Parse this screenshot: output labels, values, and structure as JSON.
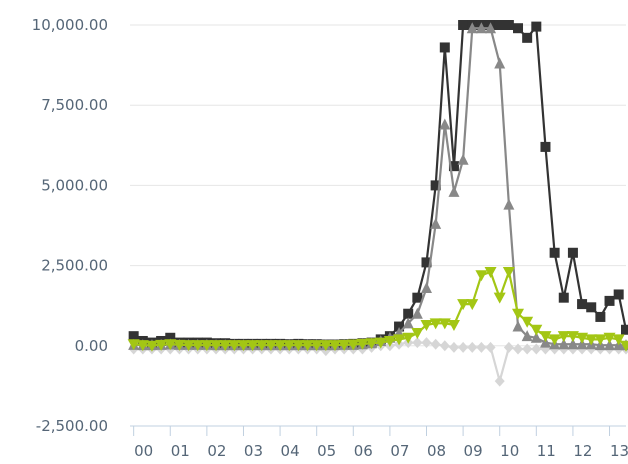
{
  "chart_data": {
    "type": "line",
    "title": "",
    "xlabel": "",
    "ylabel": "",
    "ylim": [
      -2500,
      10000
    ],
    "y_ticks": [
      -2500,
      0,
      2500,
      5000,
      7500,
      10000
    ],
    "y_tick_labels": [
      "-2,500.00",
      "0.00",
      "2,500.00",
      "5,000.00",
      "7,500.00",
      "10,000.00"
    ],
    "x_ticks": [
      0,
      1,
      2,
      3,
      4,
      5,
      6,
      7,
      8,
      9,
      10,
      11,
      12,
      13
    ],
    "x_tick_labels": [
      "00",
      "01",
      "02",
      "03",
      "04",
      "05",
      "06",
      "07",
      "08",
      "09",
      "10",
      "11",
      "12",
      "13"
    ],
    "xlim": [
      -0.1,
      13.45
    ],
    "grid": true,
    "legend": "none",
    "series": [
      {
        "marker": "square",
        "color": "#333333",
        "x": [
          0,
          0.25,
          0.5,
          0.75,
          1,
          1.25,
          1.5,
          1.75,
          2,
          2.25,
          2.5,
          2.75,
          3,
          3.25,
          3.5,
          3.75,
          4,
          4.25,
          4.5,
          4.75,
          5,
          5.25,
          5.5,
          5.75,
          6,
          6.25,
          6.5,
          6.75,
          7,
          7.25,
          7.5,
          7.75,
          8,
          8.25,
          8.5,
          8.75,
          9,
          9.25,
          9.5,
          9.75,
          10,
          10.25,
          10.5,
          10.75,
          11,
          11.25,
          11.5,
          11.75,
          12,
          12.25,
          12.5,
          12.75,
          13,
          13.25,
          13.45
        ],
        "y": [
          300,
          150,
          100,
          150,
          250,
          100,
          100,
          100,
          100,
          80,
          80,
          60,
          60,
          60,
          60,
          60,
          60,
          50,
          60,
          50,
          50,
          40,
          40,
          50,
          60,
          80,
          100,
          200,
          300,
          600,
          1000,
          1500,
          2600,
          5000,
          9300,
          5600,
          10000,
          10000,
          10000,
          10000,
          10000,
          10000,
          9900,
          9600,
          9950,
          6200,
          2900,
          1500,
          2900,
          1300,
          1200,
          900,
          1400,
          1600,
          500
        ]
      },
      {
        "marker": "triangle-up",
        "color": "#888888",
        "x": [
          0,
          0.25,
          0.5,
          0.75,
          1,
          1.25,
          1.5,
          1.75,
          2,
          2.25,
          2.5,
          2.75,
          3,
          3.25,
          3.5,
          3.75,
          4,
          4.25,
          4.5,
          4.75,
          5,
          5.25,
          5.5,
          5.75,
          6,
          6.25,
          6.5,
          6.75,
          7,
          7.25,
          7.5,
          7.75,
          8,
          8.25,
          8.5,
          8.75,
          9,
          9.25,
          9.5,
          9.75,
          10,
          10.25,
          10.5,
          10.75,
          11,
          11.25,
          11.5,
          11.75,
          12,
          12.25,
          12.5,
          12.75,
          13,
          13.25,
          13.45
        ],
        "y": [
          30,
          20,
          20,
          30,
          40,
          30,
          30,
          30,
          30,
          20,
          20,
          20,
          20,
          20,
          20,
          20,
          20,
          20,
          20,
          20,
          20,
          20,
          20,
          30,
          30,
          50,
          80,
          150,
          250,
          400,
          700,
          1000,
          1800,
          3800,
          6900,
          4800,
          5800,
          9900,
          9900,
          9900,
          8800,
          4400,
          600,
          300,
          250,
          100,
          50,
          50,
          50,
          50,
          50,
          20,
          20,
          20,
          20
        ]
      },
      {
        "marker": "triangle-down",
        "color": "#a3c614",
        "x": [
          0,
          0.25,
          0.5,
          0.75,
          1,
          1.25,
          1.5,
          1.75,
          2,
          2.25,
          2.5,
          2.75,
          3,
          3.25,
          3.5,
          3.75,
          4,
          4.25,
          4.5,
          4.75,
          5,
          5.25,
          5.5,
          5.75,
          6,
          6.25,
          6.5,
          6.75,
          7,
          7.25,
          7.5,
          7.75,
          8,
          8.25,
          8.5,
          8.75,
          9,
          9.25,
          9.5,
          9.75,
          10,
          10.25,
          10.5,
          10.75,
          11,
          11.25,
          11.5,
          11.75,
          12,
          12.25,
          12.5,
          12.75,
          13,
          13.25,
          13.45
        ],
        "y": [
          50,
          20,
          0,
          30,
          50,
          30,
          20,
          20,
          20,
          20,
          20,
          20,
          20,
          20,
          20,
          20,
          20,
          20,
          20,
          20,
          20,
          20,
          20,
          30,
          40,
          60,
          80,
          100,
          150,
          200,
          250,
          400,
          650,
          700,
          700,
          650,
          1300,
          1300,
          2200,
          2300,
          1500,
          2300,
          1000,
          750,
          500,
          300,
          200,
          300,
          300,
          250,
          200,
          200,
          250,
          200,
          0
        ]
      },
      {
        "marker": "diamond",
        "color": "#d6d6d6",
        "x": [
          0,
          0.25,
          0.5,
          0.75,
          1,
          1.25,
          1.5,
          1.75,
          2,
          2.25,
          2.5,
          2.75,
          3,
          3.25,
          3.5,
          3.75,
          4,
          4.25,
          4.5,
          4.75,
          5,
          5.25,
          5.5,
          5.75,
          6,
          6.25,
          6.5,
          6.75,
          7,
          7.25,
          7.5,
          7.75,
          8,
          8.25,
          8.5,
          8.75,
          9,
          9.25,
          9.5,
          9.75,
          10,
          10.25,
          10.5,
          10.75,
          11,
          11.25,
          11.5,
          11.75,
          12,
          12.25,
          12.5,
          12.75,
          13,
          13.25,
          13.45
        ],
        "y": [
          -100,
          -100,
          -100,
          -100,
          -100,
          -100,
          -100,
          -100,
          -100,
          -100,
          -100,
          -100,
          -100,
          -100,
          -100,
          -100,
          -100,
          -100,
          -100,
          -100,
          -100,
          -150,
          -100,
          -100,
          -100,
          -100,
          -50,
          0,
          0,
          50,
          100,
          100,
          100,
          50,
          0,
          -50,
          -50,
          -50,
          -50,
          -50,
          -1100,
          -50,
          -100,
          -100,
          -100,
          -100,
          -100,
          -100,
          -100,
          -100,
          -100,
          -100,
          -100,
          -100,
          -100
        ]
      }
    ]
  }
}
